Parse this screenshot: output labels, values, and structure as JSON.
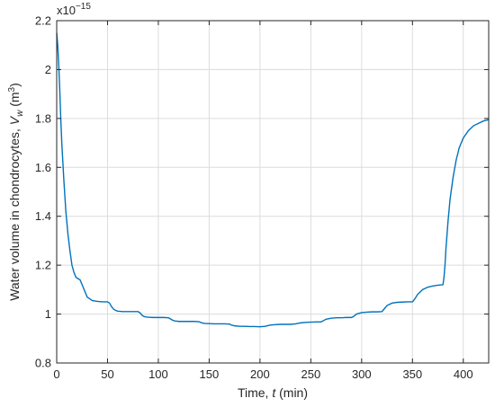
{
  "chart_data": {
    "type": "line",
    "title": "",
    "xlabel": "Time, t (min)",
    "ylabel": "Water volume in chondrocytes, V_w (m^3)",
    "y_multiplier": "x10^{-15}",
    "xlim": [
      0,
      425
    ],
    "ylim": [
      0.8,
      2.2
    ],
    "x_ticks": [
      0,
      50,
      100,
      150,
      200,
      250,
      300,
      350,
      400
    ],
    "y_ticks": [
      0.8,
      1.0,
      1.2,
      1.4,
      1.6,
      1.8,
      2.0,
      2.2
    ],
    "x_tick_labels": [
      "0",
      "50",
      "100",
      "150",
      "200",
      "250",
      "300",
      "350",
      "400"
    ],
    "y_tick_labels": [
      "0.8",
      "1",
      "1.2",
      "1.4",
      "1.6",
      "1.8",
      "2",
      "2.2"
    ],
    "grid": true,
    "line_color": "#0072BD",
    "series": [
      {
        "x": [
          0,
          1,
          2,
          3,
          4,
          5,
          7,
          9,
          11,
          13,
          15,
          17,
          19,
          21,
          23,
          25,
          27,
          30,
          35,
          40,
          45,
          50,
          52,
          54,
          56,
          58,
          60,
          65,
          70,
          75,
          80,
          82,
          84,
          86,
          88,
          90,
          95,
          100,
          105,
          110,
          112,
          114,
          116,
          118,
          120,
          125,
          130,
          135,
          140,
          142,
          145,
          150,
          155,
          160,
          165,
          170,
          172,
          175,
          180,
          185,
          190,
          195,
          200,
          205,
          210,
          215,
          220,
          225,
          230,
          235,
          240,
          245,
          250,
          255,
          260,
          262,
          265,
          270,
          275,
          280,
          285,
          290,
          292,
          295,
          300,
          305,
          310,
          315,
          320,
          322,
          325,
          330,
          335,
          340,
          345,
          350,
          352,
          355,
          360,
          365,
          370,
          375,
          380,
          381,
          382,
          383,
          385,
          387,
          390,
          393,
          396,
          400,
          405,
          410,
          415,
          420,
          425
        ],
        "y": [
          2.15,
          2.1,
          2.02,
          1.92,
          1.8,
          1.7,
          1.55,
          1.42,
          1.33,
          1.26,
          1.2,
          1.17,
          1.15,
          1.145,
          1.14,
          1.12,
          1.1,
          1.07,
          1.055,
          1.052,
          1.05,
          1.05,
          1.045,
          1.03,
          1.02,
          1.015,
          1.012,
          1.01,
          1.01,
          1.01,
          1.01,
          1.005,
          0.995,
          0.99,
          0.988,
          0.987,
          0.986,
          0.986,
          0.986,
          0.985,
          0.98,
          0.975,
          0.972,
          0.971,
          0.97,
          0.97,
          0.97,
          0.97,
          0.969,
          0.965,
          0.962,
          0.961,
          0.96,
          0.96,
          0.96,
          0.959,
          0.955,
          0.952,
          0.95,
          0.95,
          0.949,
          0.949,
          0.948,
          0.95,
          0.955,
          0.957,
          0.958,
          0.958,
          0.958,
          0.96,
          0.964,
          0.966,
          0.967,
          0.968,
          0.968,
          0.972,
          0.979,
          0.983,
          0.985,
          0.985,
          0.986,
          0.986,
          0.99,
          1.0,
          1.006,
          1.008,
          1.009,
          1.009,
          1.01,
          1.02,
          1.035,
          1.045,
          1.048,
          1.049,
          1.05,
          1.05,
          1.06,
          1.08,
          1.1,
          1.11,
          1.115,
          1.118,
          1.12,
          1.15,
          1.2,
          1.27,
          1.38,
          1.47,
          1.56,
          1.63,
          1.68,
          1.72,
          1.75,
          1.77,
          1.78,
          1.79,
          1.795
        ]
      }
    ]
  }
}
